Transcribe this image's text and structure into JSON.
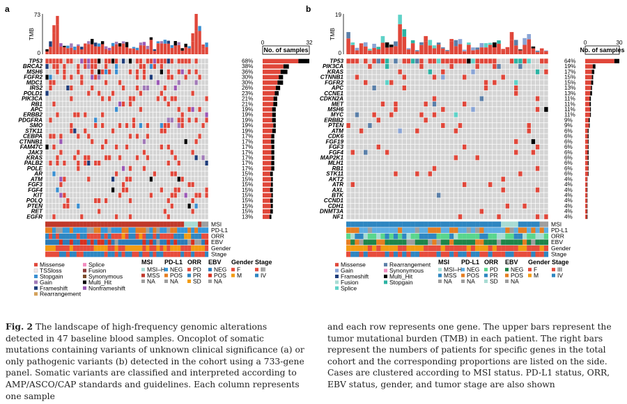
{
  "panels": [
    {
      "label": "a",
      "tmb_label": "TMB",
      "tmb_max": 73,
      "count_header": "No. of samples",
      "count_axis": [
        0,
        32
      ],
      "samples": 47,
      "genes": [
        {
          "name": "TP53",
          "pct": "68%",
          "n": 32
        },
        {
          "name": "BRCA2",
          "pct": "38%",
          "n": 18
        },
        {
          "name": "MSH6",
          "pct": "36%",
          "n": 17
        },
        {
          "name": "FGFR2",
          "pct": "30%",
          "n": 14
        },
        {
          "name": "MDC1",
          "pct": "30%",
          "n": 14
        },
        {
          "name": "IRS2",
          "pct": "26%",
          "n": 12
        },
        {
          "name": "POLD1",
          "pct": "23%",
          "n": 11
        },
        {
          "name": "PIK3CA",
          "pct": "21%",
          "n": 10
        },
        {
          "name": "RB1",
          "pct": "21%",
          "n": 10
        },
        {
          "name": "APC",
          "pct": "19%",
          "n": 9
        },
        {
          "name": "ERBB2",
          "pct": "19%",
          "n": 9
        },
        {
          "name": "PDGFRA",
          "pct": "19%",
          "n": 9
        },
        {
          "name": "SMO",
          "pct": "19%",
          "n": 9
        },
        {
          "name": "STK11",
          "pct": "19%",
          "n": 9
        },
        {
          "name": "CEBPA",
          "pct": "17%",
          "n": 8
        },
        {
          "name": "CTNNB1",
          "pct": "17%",
          "n": 8
        },
        {
          "name": "FAM47C",
          "pct": "17%",
          "n": 8
        },
        {
          "name": "JAK3",
          "pct": "17%",
          "n": 8
        },
        {
          "name": "KRAS",
          "pct": "17%",
          "n": 8
        },
        {
          "name": "PALB2",
          "pct": "17%",
          "n": 8
        },
        {
          "name": "POLE",
          "pct": "17%",
          "n": 8
        },
        {
          "name": "AR",
          "pct": "15%",
          "n": 7
        },
        {
          "name": "ATM",
          "pct": "15%",
          "n": 7
        },
        {
          "name": "FGF3",
          "pct": "15%",
          "n": 7
        },
        {
          "name": "FGF4",
          "pct": "15%",
          "n": 7
        },
        {
          "name": "KIT",
          "pct": "15%",
          "n": 7
        },
        {
          "name": "POLQ",
          "pct": "15%",
          "n": 7
        },
        {
          "name": "PTEN",
          "pct": "15%",
          "n": 7
        },
        {
          "name": "RET",
          "pct": "15%",
          "n": 7
        },
        {
          "name": "EGFR",
          "pct": "13%",
          "n": 6
        }
      ],
      "annotation_rows": [
        "MSI",
        "PD-L1",
        "ORR",
        "EBV",
        "Gender",
        "Stage"
      ],
      "mutation_legend": [
        {
          "label": "Missense",
          "color": "#e0473a"
        },
        {
          "label": "TSSloss",
          "color": "#f4e4e4"
        },
        {
          "label": "Stopgain",
          "color": "#3a8fd1"
        },
        {
          "label": "Gain",
          "color": "#a17ab8"
        },
        {
          "label": "Frameshift",
          "color": "#1f3d7a"
        },
        {
          "label": "Rearrangement",
          "color": "#d4a15a"
        },
        {
          "label": "Splice",
          "color": "#f28bc0"
        },
        {
          "label": "Fusion",
          "color": "#8b3a3a"
        },
        {
          "label": "Synonymous",
          "color": "#7a4a2a"
        },
        {
          "label": "Multi_Hit",
          "color": "#000000"
        },
        {
          "label": "Nonframeshift",
          "color": "#9b59b6"
        }
      ],
      "clin_legend": [
        {
          "title": "MSI",
          "items": [
            {
              "label": "MSI–H",
              "color": "#a8dcd4"
            },
            {
              "label": "MSS",
              "color": "#c0392b"
            },
            {
              "label": "NA",
              "color": "#9e9e9e"
            }
          ]
        },
        {
          "title": "PD-L1",
          "items": [
            {
              "label": "NEG",
              "color": "#3498db"
            },
            {
              "label": "POS",
              "color": "#e67e22"
            },
            {
              "label": "NA",
              "color": "#9e9e9e"
            }
          ]
        },
        {
          "title": "ORR",
          "items": [
            {
              "label": "PD",
              "color": "#e74c3c"
            },
            {
              "label": "PR",
              "color": "#2e86c1"
            },
            {
              "label": "SD",
              "color": "#f39c12"
            }
          ]
        },
        {
          "title": "EBV",
          "items": [
            {
              "label": "NEG",
              "color": "#2c7bb6"
            },
            {
              "label": "POS",
              "color": "#d7301f"
            },
            {
              "label": "NA",
              "color": "#9e9e9e"
            }
          ]
        },
        {
          "title": "Gender",
          "items": [
            {
              "label": "F",
              "color": "#e74c3c"
            },
            {
              "label": "M",
              "color": "#f39c12"
            }
          ]
        },
        {
          "title": "Stage",
          "items": [
            {
              "label": "III",
              "color": "#e74c3c"
            },
            {
              "label": "IV",
              "color": "#2e86c1"
            }
          ]
        }
      ]
    },
    {
      "label": "b",
      "tmb_label": "TMB",
      "tmb_max": 19,
      "count_header": "No. of samples",
      "count_axis": [
        0,
        30
      ],
      "samples": 47,
      "genes": [
        {
          "name": "TP53",
          "pct": "64%",
          "n": 30
        },
        {
          "name": "PIK3CA",
          "pct": "19%",
          "n": 9
        },
        {
          "name": "KRAS",
          "pct": "17%",
          "n": 8
        },
        {
          "name": "CTNNB1",
          "pct": "15%",
          "n": 7
        },
        {
          "name": "FGFR2",
          "pct": "15%",
          "n": 7
        },
        {
          "name": "APC",
          "pct": "13%",
          "n": 6
        },
        {
          "name": "CCNE1",
          "pct": "13%",
          "n": 6
        },
        {
          "name": "CDKN2A",
          "pct": "11%",
          "n": 5
        },
        {
          "name": "MET",
          "pct": "11%",
          "n": 5
        },
        {
          "name": "MSH6",
          "pct": "11%",
          "n": 5
        },
        {
          "name": "MYC",
          "pct": "11%",
          "n": 5
        },
        {
          "name": "ERBB2",
          "pct": "9%",
          "n": 4
        },
        {
          "name": "PTEN",
          "pct": "9%",
          "n": 4
        },
        {
          "name": "ATM",
          "pct": "6%",
          "n": 3
        },
        {
          "name": "CDK6",
          "pct": "6%",
          "n": 3
        },
        {
          "name": "FGF19",
          "pct": "6%",
          "n": 3
        },
        {
          "name": "FGF3",
          "pct": "6%",
          "n": 3
        },
        {
          "name": "FGF4",
          "pct": "6%",
          "n": 3
        },
        {
          "name": "MAP2K1",
          "pct": "6%",
          "n": 3
        },
        {
          "name": "MLH1",
          "pct": "6%",
          "n": 3
        },
        {
          "name": "RB1",
          "pct": "6%",
          "n": 3
        },
        {
          "name": "STK11",
          "pct": "6%",
          "n": 3
        },
        {
          "name": "AKT2",
          "pct": "4%",
          "n": 2
        },
        {
          "name": "ATR",
          "pct": "4%",
          "n": 2
        },
        {
          "name": "AXL",
          "pct": "4%",
          "n": 2
        },
        {
          "name": "BTK",
          "pct": "4%",
          "n": 2
        },
        {
          "name": "CCND1",
          "pct": "4%",
          "n": 2
        },
        {
          "name": "CDH1",
          "pct": "4%",
          "n": 2
        },
        {
          "name": "DNMT3A",
          "pct": "4%",
          "n": 2
        },
        {
          "name": "NF1",
          "pct": "4%",
          "n": 2
        }
      ],
      "annotation_rows": [
        "MSI",
        "PD-L1",
        "ORR",
        "EBV",
        "Gender",
        "Stage"
      ],
      "mutation_legend": [
        {
          "label": "Missense",
          "color": "#e0473a"
        },
        {
          "label": "Gain",
          "color": "#8aa5d6"
        },
        {
          "label": "Frameshift",
          "color": "#1f3d7a"
        },
        {
          "label": "Fusion",
          "color": "#a8dcd4"
        },
        {
          "label": "Splice",
          "color": "#5fd2c8"
        },
        {
          "label": "Rearrangement",
          "color": "#5a7fa8"
        },
        {
          "label": "Synonymous",
          "color": "#f28bc0"
        },
        {
          "label": "Multi_Hit",
          "color": "#000000"
        },
        {
          "label": "Stopgain",
          "color": "#2bb3a3"
        }
      ],
      "clin_legend": [
        {
          "title": "MSI",
          "items": [
            {
              "label": "MSI–H",
              "color": "#a8dcd4"
            },
            {
              "label": "MSS",
              "color": "#2e86c1"
            },
            {
              "label": "NA",
              "color": "#9e9e9e"
            }
          ]
        },
        {
          "title": "PD-L1",
          "items": [
            {
              "label": "NEG",
              "color": "#5dade2"
            },
            {
              "label": "POS",
              "color": "#e67e22"
            },
            {
              "label": "NA",
              "color": "#9e9e9e"
            }
          ]
        },
        {
          "title": "ORR",
          "items": [
            {
              "label": "PD",
              "color": "#58d68d"
            },
            {
              "label": "PR",
              "color": "#2e86c1"
            },
            {
              "label": "SD",
              "color": "#a8dcd4"
            }
          ]
        },
        {
          "title": "EBV",
          "items": [
            {
              "label": "NEG",
              "color": "#1e8449"
            },
            {
              "label": "POS",
              "color": "#e67e22"
            },
            {
              "label": "NA",
              "color": "#9e9e9e"
            }
          ]
        },
        {
          "title": "Gender",
          "items": [
            {
              "label": "F",
              "color": "#e74c3c"
            },
            {
              "label": "M",
              "color": "#f39c12"
            }
          ]
        },
        {
          "title": "Stage",
          "items": [
            {
              "label": "III",
              "color": "#e74c3c"
            },
            {
              "label": "IV",
              "color": "#2e86c1"
            }
          ]
        }
      ]
    }
  ],
  "caption": {
    "fig_label": "Fig. 2",
    "left": " The landscape of high-frequency genomic alterations detected in 47 baseline blood samples. Oncoplot of somatic mutations containing variants of unknown clinical significance (a) or only pathogenic variants (b) detected in the cohort using a 733-gene panel. Somatic variants are classified and interpreted according to AMP/ASCO/CAP standards and guidelines. Each column represents one sample",
    "right": "and each row represents one gene. The upper bars represent the tumor mutational burden (TMB) in each patient. The right bars represent the numbers of patients for specific genes in the total cohort and the corresponding proportions are listed on the side. Cases are clustered according to MSI status. PD-L1 status, ORR, EBV status, gender, and tumor stage are also shown"
  }
}
